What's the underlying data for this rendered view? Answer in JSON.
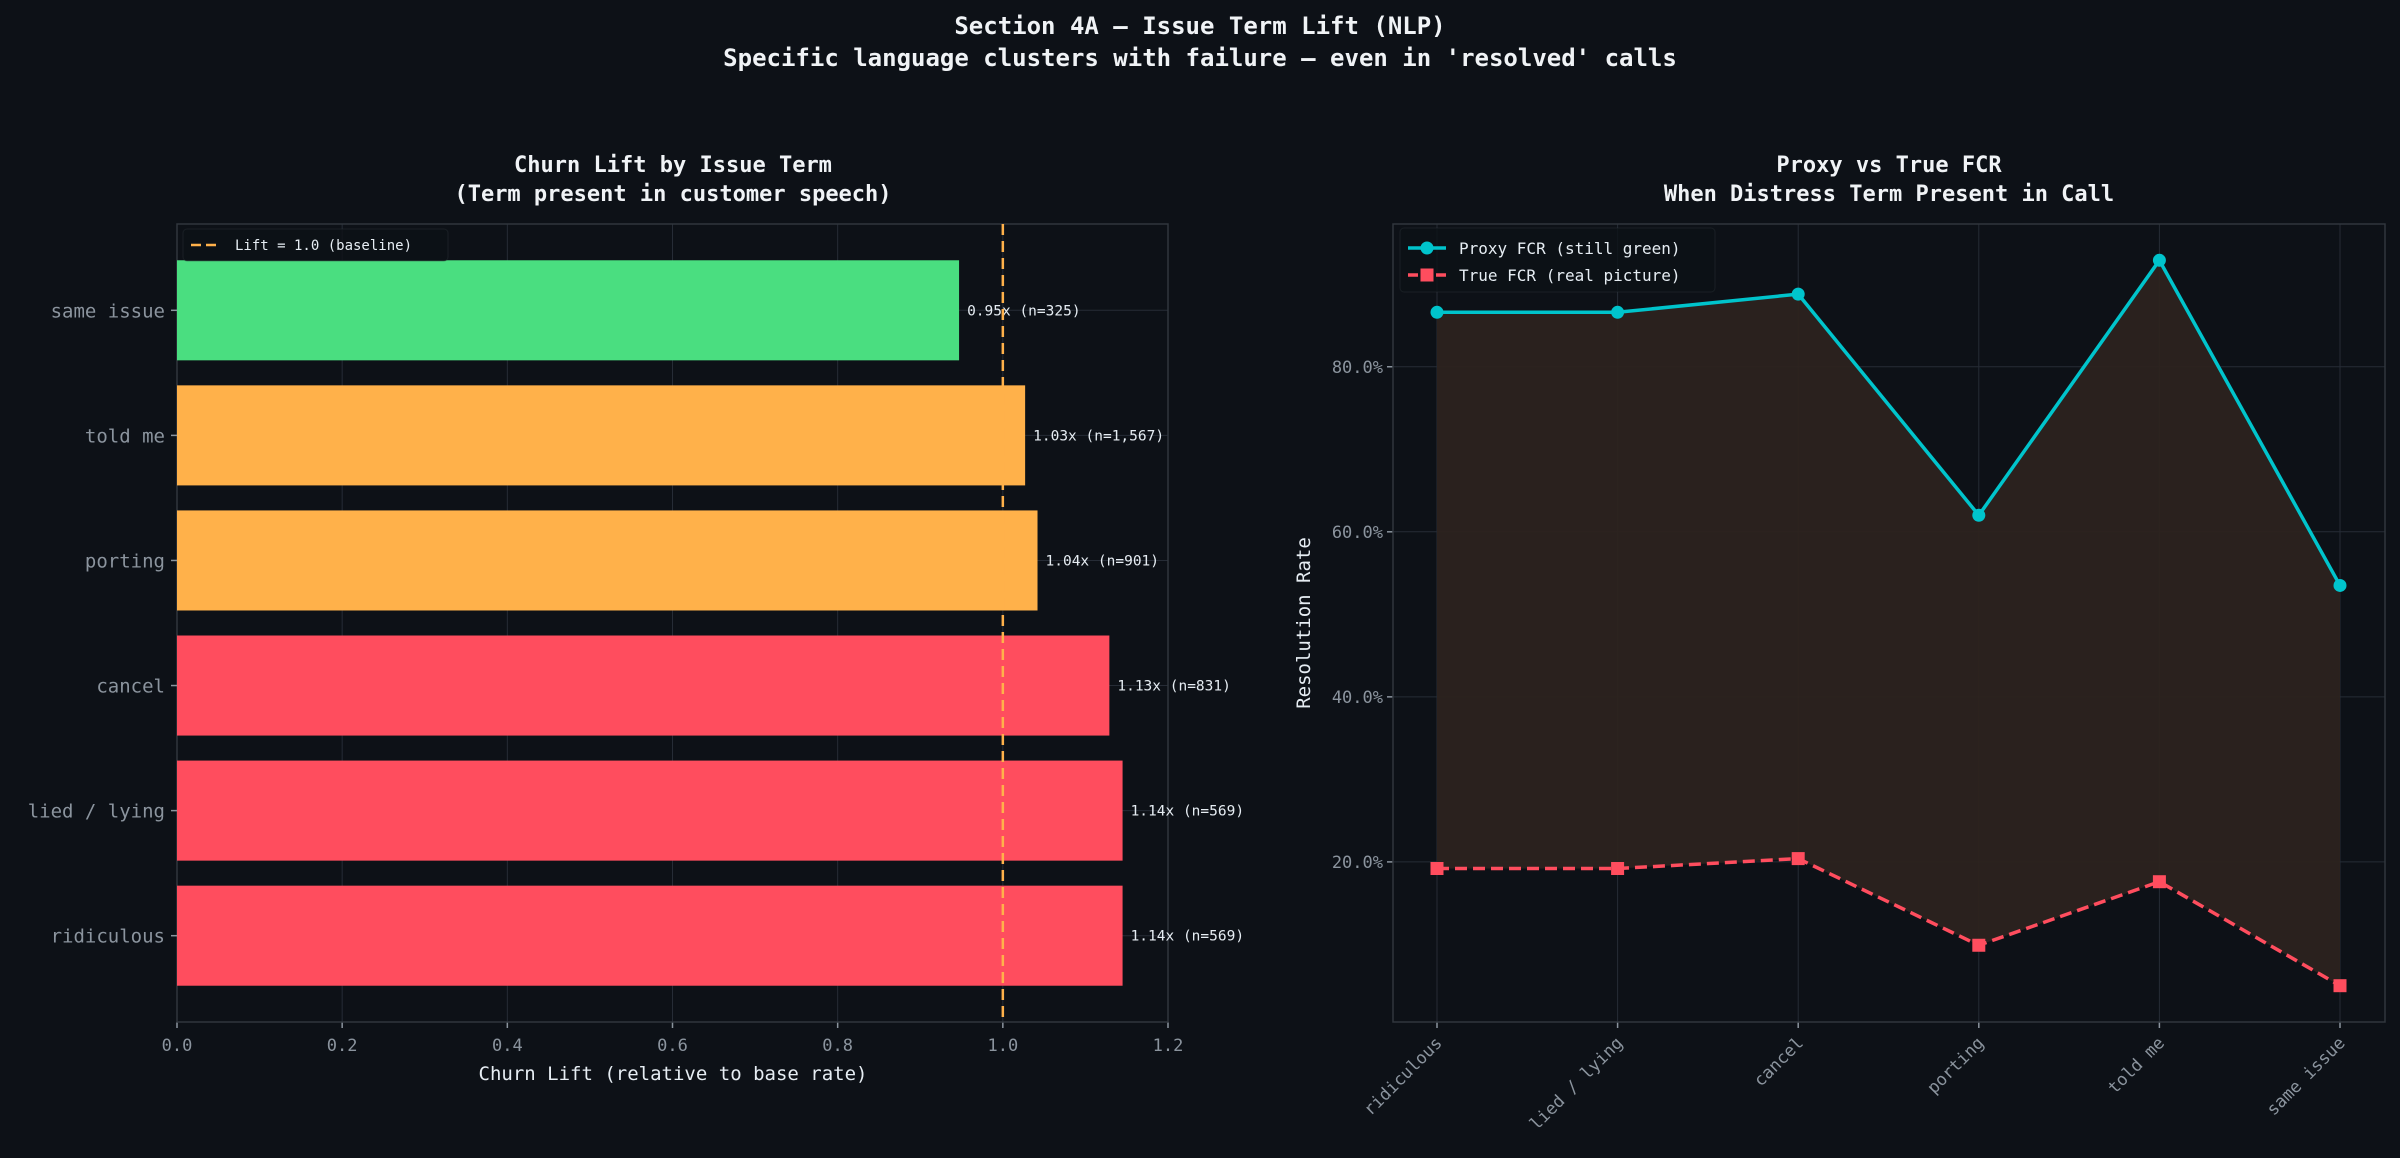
{
  "suptitle": "Section 4A — Issue Term Lift (NLP)",
  "supsubtitle": "Specific language clusters with failure — even in 'resolved' calls",
  "colors": {
    "background": "#0d1117",
    "grid": "#262c36",
    "red": "#ff4d5e",
    "orange": "#ffb14a",
    "green": "#4ade80",
    "cyan": "#00c4cc",
    "fill": "#2c231f",
    "text": "#e6edf3",
    "tick": "#8b949e"
  },
  "chart_data": [
    {
      "type": "bar",
      "orientation": "horizontal",
      "title": "Churn Lift by Issue Term",
      "title_line2": "(Term present in customer speech)",
      "xlabel": "Churn Lift (relative to base rate)",
      "ylabel": "",
      "xlim": [
        0,
        1.2
      ],
      "xticks": [
        "0.0",
        "0.2",
        "0.4",
        "0.6",
        "0.8",
        "1.0",
        "1.2"
      ],
      "grid": true,
      "categories": [
        "ridiculous",
        "lied / lying",
        "cancel",
        "porting",
        "told me",
        "same issue"
      ],
      "values": [
        1.145,
        1.145,
        1.129,
        1.042,
        1.027,
        0.947
      ],
      "bar_colors": [
        "#ff4d5e",
        "#ff4d5e",
        "#ff4d5e",
        "#ffb14a",
        "#ffb14a",
        "#4ade80"
      ],
      "data_labels": [
        "1.14x  (n=569)",
        "1.14x  (n=569)",
        "1.13x  (n=831)",
        "1.04x  (n=901)",
        "1.03x  (n=1,567)",
        "0.95x  (n=325)"
      ],
      "reference_line": {
        "value": 1.0,
        "style": "dashed",
        "color": "#ffb14a",
        "label": "Lift = 1.0 (baseline)"
      },
      "legend": "top-left"
    },
    {
      "type": "line",
      "title": "Proxy vs True FCR",
      "title_line2": "When Distress Term Present in Call",
      "xlabel": "",
      "ylabel": "Resolution Rate",
      "ylim": [
        0.6,
        97.3
      ],
      "yticks": [
        20,
        40,
        60,
        80
      ],
      "ytick_labels": [
        "20.0%",
        "40.0%",
        "60.0%",
        "80.0%"
      ],
      "grid": true,
      "categories": [
        "ridiculous",
        "lied / lying",
        "cancel",
        "porting",
        "told me",
        "same issue"
      ],
      "series": [
        {
          "name": "Proxy FCR (still green)",
          "values": [
            86.6,
            86.6,
            88.8,
            62.0,
            92.9,
            53.5
          ],
          "color": "#00c4cc",
          "marker": "circle",
          "style": "solid"
        },
        {
          "name": "True FCR (real picture)",
          "values": [
            19.2,
            19.2,
            20.4,
            9.9,
            17.6,
            5.0
          ],
          "color": "#ff4d5e",
          "marker": "square",
          "style": "dashed"
        }
      ],
      "fill_between": true,
      "legend": "top-left"
    }
  ]
}
